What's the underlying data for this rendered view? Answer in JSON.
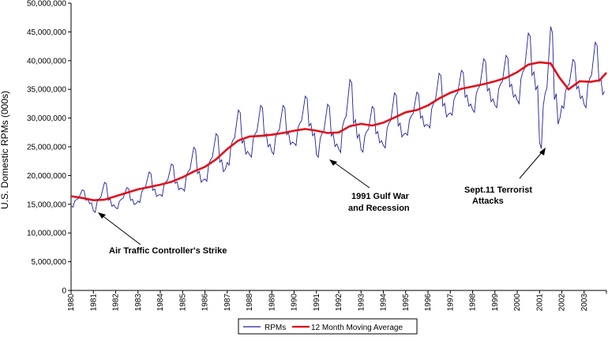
{
  "chart_data": {
    "type": "line",
    "title": "",
    "xlabel": "",
    "ylabel": "U.S. Domestic RPMs (000s)",
    "xlim": [
      1980,
      2004
    ],
    "ylim": [
      0,
      50000000
    ],
    "x_ticks": [
      "1980",
      "1981",
      "1982",
      "1983",
      "1984",
      "1985",
      "1986",
      "1987",
      "1988",
      "1989",
      "1990",
      "1991",
      "1992",
      "1993",
      "1994",
      "1995",
      "1996",
      "1997",
      "1998",
      "1999",
      "2000",
      "2001",
      "2002",
      "2003"
    ],
    "y_ticks": [
      "0",
      "5,000,000",
      "10,000,000",
      "15,000,000",
      "20,000,000",
      "25,000,000",
      "30,000,000",
      "35,000,000",
      "40,000,000",
      "45,000,000",
      "50,000,000"
    ],
    "y_tick_values": [
      0,
      5000000,
      10000000,
      15000000,
      20000000,
      25000000,
      30000000,
      35000000,
      40000000,
      45000000,
      50000000
    ],
    "grid": false,
    "legend_position": "bottom",
    "colors": {
      "rpms": "#1f1f9a",
      "moving_average": "#e0101a"
    },
    "series": [
      {
        "name": "RPMs",
        "note_shape": "monthly values with seasonal peaks each summer",
        "yearly_low": [
          14500000,
          13600000,
          14200000,
          15300000,
          16400000,
          17300000,
          19000000,
          21800000,
          23200000,
          23700000,
          25200000,
          23200000,
          24000000,
          24100000,
          24800000,
          27000000,
          28300000,
          30500000,
          31000000,
          31800000,
          32500000,
          24700000,
          31700000,
          31800000
        ],
        "yearly_high": [
          17500000,
          18800000,
          17900000,
          20600000,
          22000000,
          24900000,
          27300000,
          31400000,
          32200000,
          32200000,
          33800000,
          32400000,
          36700000,
          32000000,
          34400000,
          34500000,
          37800000,
          38300000,
          40300000,
          40900000,
          44800000,
          45900000,
          40200000,
          43200000
        ]
      },
      {
        "name": "12 Month Moving Average",
        "x": [
          1980.0,
          1980.5,
          1981.0,
          1981.5,
          1982.0,
          1982.5,
          1983.0,
          1983.5,
          1984.0,
          1984.5,
          1985.0,
          1985.5,
          1986.0,
          1986.5,
          1987.0,
          1987.5,
          1988.0,
          1988.5,
          1989.0,
          1989.5,
          1990.0,
          1990.5,
          1991.0,
          1991.5,
          1992.0,
          1992.5,
          1993.0,
          1993.5,
          1994.0,
          1994.5,
          1995.0,
          1995.5,
          1996.0,
          1996.5,
          1997.0,
          1997.5,
          1998.0,
          1998.5,
          1999.0,
          1999.5,
          2000.0,
          2000.5,
          2001.0,
          2001.5,
          2001.9,
          2002.3,
          2002.8,
          2003.3,
          2003.7,
          2004.0
        ],
        "values": [
          16400000,
          16100000,
          15700000,
          15800000,
          16400000,
          17000000,
          17600000,
          18000000,
          18400000,
          18900000,
          19700000,
          20700000,
          21500000,
          22800000,
          24600000,
          26100000,
          26800000,
          26900000,
          27100000,
          27400000,
          27800000,
          28100000,
          27800000,
          27400000,
          27500000,
          28600000,
          29000000,
          28700000,
          29200000,
          30100000,
          31000000,
          31400000,
          32200000,
          33400000,
          34400000,
          35100000,
          35500000,
          35900000,
          36400000,
          37000000,
          38000000,
          39300000,
          39700000,
          39500000,
          37000000,
          35000000,
          36400000,
          36300000,
          36600000,
          37900000
        ]
      }
    ],
    "annotations": [
      {
        "lines": [
          "Air Traffic Controller's Strike"
        ],
        "x": 1981.3,
        "y": 15500000
      },
      {
        "lines": [
          "1991 Gulf War",
          "and Recession"
        ],
        "x": 1991.5,
        "y": 22300000
      },
      {
        "lines": [
          "Sept.11 Terrorist",
          "Attacks"
        ],
        "x": 2001.0,
        "y": 24500000
      }
    ],
    "legend": [
      {
        "name": "RPMs",
        "color": "#1f1f9a"
      },
      {
        "name": "12 Month Moving Average",
        "color": "#e0101a"
      }
    ]
  }
}
